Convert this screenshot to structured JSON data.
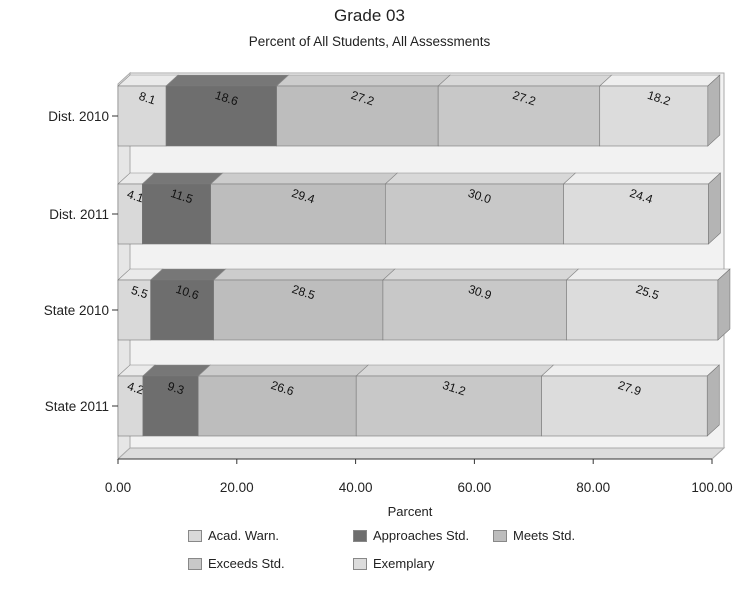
{
  "chart_data": {
    "type": "bar",
    "orientation": "horizontal",
    "stacked": true,
    "style": "3d",
    "title": "Grade 03",
    "subtitle": "Percent of All Students, All Assessments",
    "xlabel": "Parcent",
    "ylabel": "",
    "xlim": [
      0,
      100
    ],
    "x_ticks": [
      "0.00",
      "20.00",
      "40.00",
      "60.00",
      "80.00",
      "100.00"
    ],
    "categories": [
      "Dist. 2010",
      "Dist. 2011",
      "State 2010",
      "State 2011"
    ],
    "series": [
      {
        "name": "Acad. Warn.",
        "values": [
          8.1,
          4.1,
          5.5,
          4.2
        ],
        "labels": [
          "8.1",
          "4.1",
          "5.5",
          "4.2"
        ],
        "color": "#d9d9d9"
      },
      {
        "name": "Approaches Std.",
        "values": [
          18.6,
          11.5,
          10.6,
          9.3
        ],
        "labels": [
          "18.6",
          "11.5",
          "10.6",
          "9.3"
        ],
        "color": "#6e6e6e"
      },
      {
        "name": "Meets Std.",
        "values": [
          27.2,
          29.4,
          28.5,
          26.6
        ],
        "labels": [
          "27.2",
          "29.4",
          "28.5",
          "26.6"
        ],
        "color": "#bdbdbd"
      },
      {
        "name": "Exceeds Std.",
        "values": [
          27.2,
          30.0,
          30.9,
          31.2
        ],
        "labels": [
          "27.2",
          "30.0",
          "30.9",
          "31.2"
        ],
        "color": "#c8c8c8"
      },
      {
        "name": "Exemplary",
        "values": [
          18.2,
          24.4,
          25.5,
          27.9
        ],
        "labels": [
          "18.2",
          "24.4",
          "25.5",
          "27.9"
        ],
        "color": "#dcdcdc"
      }
    ],
    "grid": false,
    "legend_position": "bottom"
  }
}
